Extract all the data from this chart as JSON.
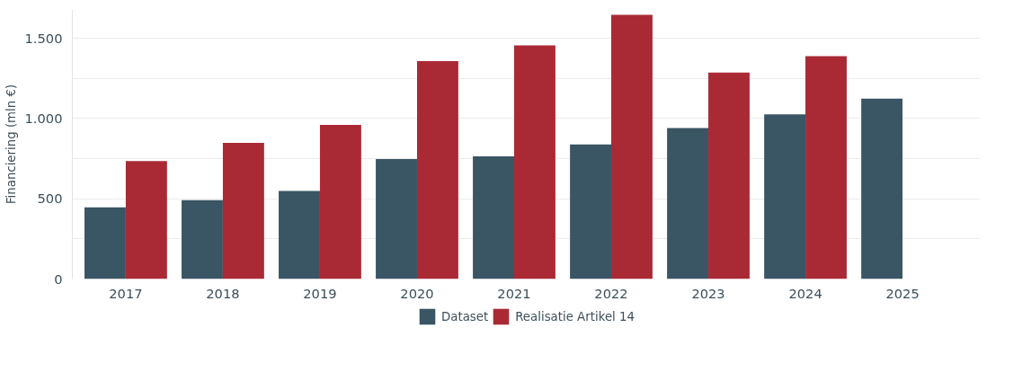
{
  "chart_data": {
    "type": "bar",
    "ylabel": "Financiering (mln €)",
    "categories": [
      "2017",
      "2018",
      "2019",
      "2020",
      "2021",
      "2022",
      "2023",
      "2024",
      "2025"
    ],
    "series": [
      {
        "name": "Dataset",
        "color": "#3a5564",
        "values": [
          446,
          492,
          549,
          747,
          765,
          838,
          941,
          1026,
          1124
        ]
      },
      {
        "name": "Realisatie Artikel 14",
        "color": "#a92a35",
        "values": [
          735,
          848,
          961,
          1358,
          1456,
          1647,
          1286,
          1389,
          null
        ]
      }
    ],
    "ylim": [
      0,
      1680
    ],
    "yticks": [
      0,
      {
        "value": 250,
        "label": null
      },
      {
        "value": 500,
        "label": "500"
      },
      {
        "value": 750,
        "label": null
      },
      {
        "value": 1000,
        "label": "1.000"
      },
      {
        "value": 1250,
        "label": null
      },
      {
        "value": 1500,
        "label": "1.500"
      }
    ],
    "grid": "y",
    "legend": "bottom"
  }
}
